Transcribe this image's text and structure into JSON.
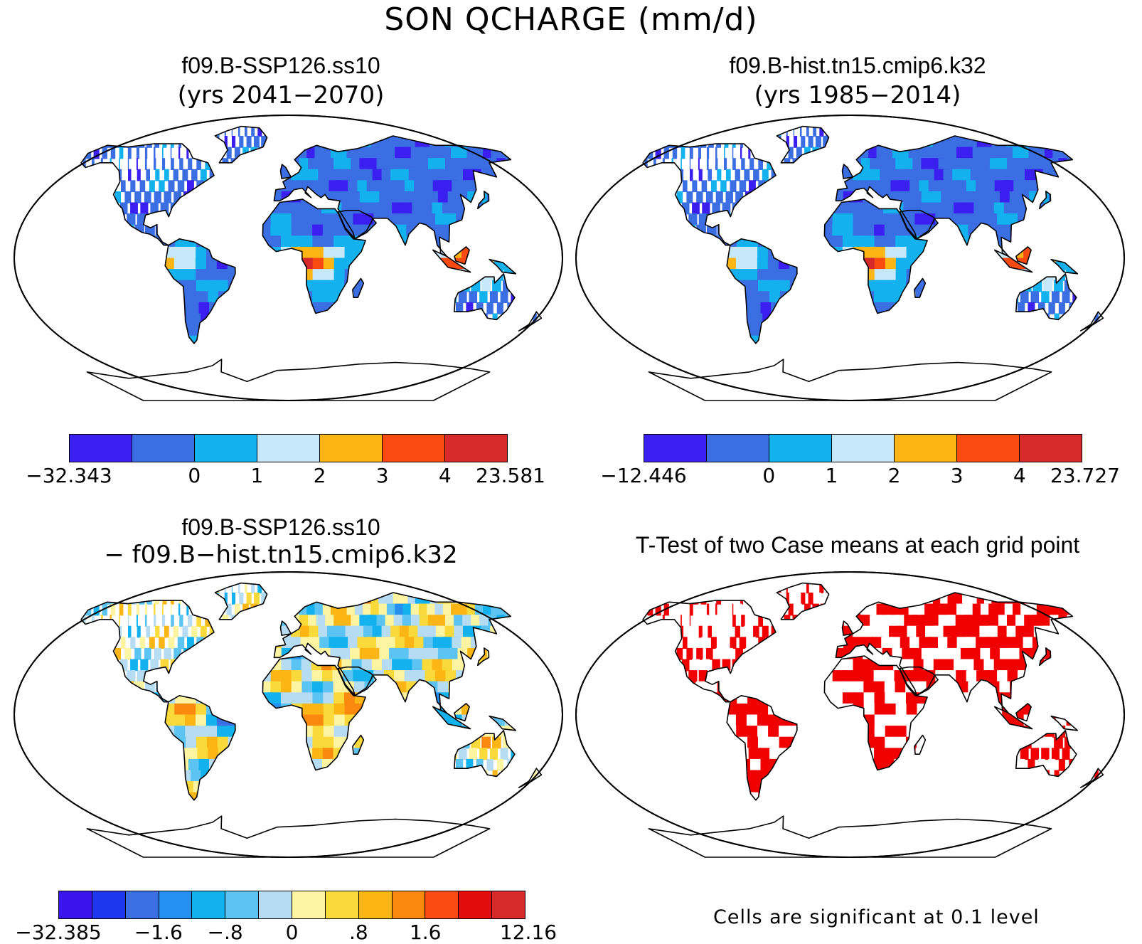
{
  "main_title": "SON QCHARGE (mm/d)",
  "panels": [
    {
      "title": "f09.B-SSP126.ss10",
      "subtitle": "(yrs 2041−2070)",
      "colorbar": {
        "colors": [
          "#3b1ff0",
          "#3a6ee2",
          "#13b2ee",
          "#c7e8f8",
          "#fbb615",
          "#f94a12",
          "#d72b2b"
        ],
        "labels": [
          "−32.343",
          "0",
          "1",
          "2",
          "3",
          "4",
          "23.581"
        ]
      }
    },
    {
      "title": "f09.B-hist.tn15.cmip6.k32",
      "subtitle": "(yrs 1985−2014)",
      "colorbar": {
        "colors": [
          "#3b1ff0",
          "#3a6ee2",
          "#13b2ee",
          "#c7e8f8",
          "#fbb615",
          "#f94a12",
          "#d72b2b"
        ],
        "labels": [
          "−12.446",
          "0",
          "1",
          "2",
          "3",
          "4",
          "23.727"
        ]
      }
    },
    {
      "title": "f09.B-SSP126.ss10",
      "subtitle": "− f09.B−hist.tn15.cmip6.k32",
      "colorbar": {
        "colors": [
          "#3a14ee",
          "#1f36ef",
          "#3a6ee2",
          "#2590f0",
          "#13b2ee",
          "#5cc4f2",
          "#b5dcf2",
          "#fcf4a0",
          "#fad93a",
          "#fbb615",
          "#f98a0f",
          "#f94a12",
          "#e20c0c",
          "#d72b2b"
        ],
        "labels": [
          "−32.385",
          "−1.6",
          "−.8",
          "0",
          ".8",
          "1.6",
          "12.16"
        ]
      }
    },
    {
      "title": "T-Test of two Case means at each grid point",
      "note": "Cells are significant at 0.1 level",
      "significance_color": "#f00000"
    }
  ]
}
